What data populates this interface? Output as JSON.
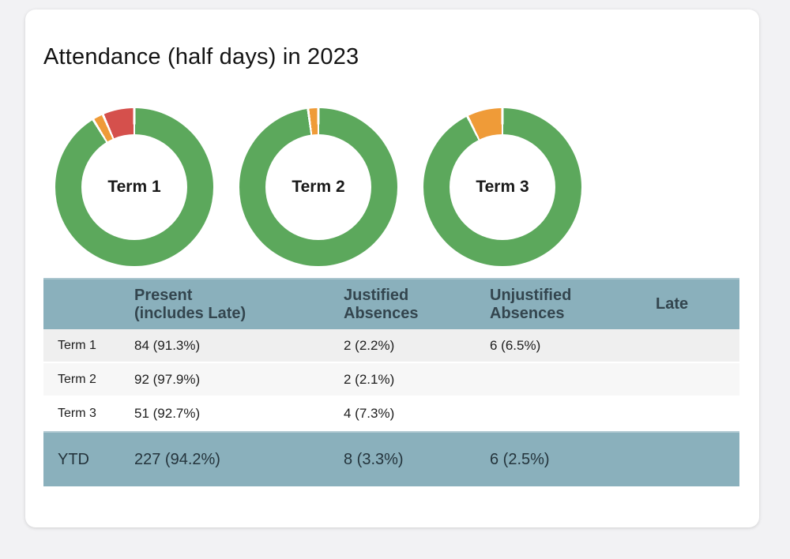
{
  "title": "Attendance (half days) in 2023",
  "colors": {
    "present_green": "#5ca85c",
    "justified_orange": "#ef9b38",
    "unjustified_red": "#d5504c",
    "table_header_bg": "#8ab0bc",
    "header_text": "#33454e",
    "row_bg_1": "#efefef",
    "row_bg_2": "#f7f7f7",
    "row_bg_3": "#ffffff",
    "page_bg": "#f2f2f4",
    "card_bg": "#ffffff"
  },
  "chart_data": [
    {
      "type": "pie",
      "title": "Term 1",
      "hole": 0.67,
      "legend": "none",
      "series": [
        {
          "name": "Present (includes Late)",
          "value": 91.3,
          "color": "#5ca85c"
        },
        {
          "name": "Justified Absences",
          "value": 2.2,
          "color": "#ef9b38"
        },
        {
          "name": "Unjustified Absences",
          "value": 6.5,
          "color": "#d5504c"
        }
      ]
    },
    {
      "type": "pie",
      "title": "Term 2",
      "hole": 0.67,
      "legend": "none",
      "series": [
        {
          "name": "Present (includes Late)",
          "value": 97.9,
          "color": "#5ca85c"
        },
        {
          "name": "Justified Absences",
          "value": 2.1,
          "color": "#ef9b38"
        }
      ]
    },
    {
      "type": "pie",
      "title": "Term 3",
      "hole": 0.67,
      "legend": "none",
      "series": [
        {
          "name": "Present (includes Late)",
          "value": 92.7,
          "color": "#5ca85c"
        },
        {
          "name": "Justified Absences",
          "value": 7.3,
          "color": "#ef9b38"
        }
      ]
    }
  ],
  "table": {
    "headers": {
      "term": "",
      "present": "Present\n(includes Late)",
      "justified": "Justified\nAbsences",
      "unjustified": "Unjustified\nAbsences",
      "late": "Late"
    },
    "rows": [
      {
        "label": "Term 1",
        "present": "84 (91.3%)",
        "justified": "2 (2.2%)",
        "unjustified": "6 (6.5%)",
        "late": ""
      },
      {
        "label": "Term 2",
        "present": "92 (97.9%)",
        "justified": "2 (2.1%)",
        "unjustified": "",
        "late": ""
      },
      {
        "label": "Term 3",
        "present": "51 (92.7%)",
        "justified": "4 (7.3%)",
        "unjustified": "",
        "late": ""
      }
    ],
    "total_row": {
      "label": "YTD",
      "present": "227 (94.2%)",
      "justified": "8 (3.3%)",
      "unjustified": "6 (2.5%)",
      "late": ""
    }
  }
}
